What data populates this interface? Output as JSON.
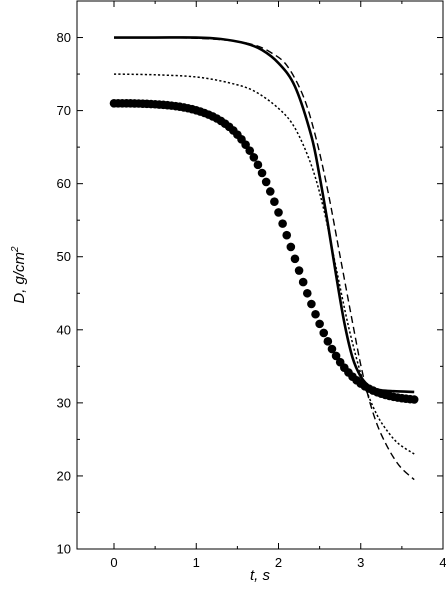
{
  "chart_data": {
    "type": "line",
    "xlabel": "t, s",
    "ylabel_main": "D, g/cm",
    "ylabel_sup": "2",
    "xlim": [
      -0.45,
      4.0
    ],
    "ylim": [
      10,
      85
    ],
    "xticks": [
      0,
      1,
      2,
      3,
      4
    ],
    "yticks": [
      10,
      20,
      30,
      40,
      50,
      60,
      70,
      80
    ],
    "xtick_labels": [
      "0",
      "1",
      "2",
      "3",
      "4"
    ],
    "ytick_labels": [
      "10",
      "20",
      "30",
      "40",
      "50",
      "60",
      "70",
      "80"
    ],
    "grid": false,
    "legend": "none",
    "series": [
      {
        "style": "solid",
        "color": "#000000",
        "x": [
          0,
          0.5,
          1.0,
          1.3,
          1.6,
          1.8,
          2.0,
          2.2,
          2.4,
          2.5,
          2.6,
          2.7,
          2.8,
          2.9,
          3.0,
          3.1,
          3.2,
          3.4,
          3.65
        ],
        "y": [
          80,
          80,
          80,
          79.8,
          79.2,
          78.3,
          76.5,
          73.3,
          66.5,
          61.0,
          54.5,
          47.5,
          41.0,
          36.2,
          33.6,
          32.3,
          31.8,
          31.6,
          31.5
        ]
      },
      {
        "style": "dashed",
        "color": "#000000",
        "x": [
          0,
          0.5,
          1.0,
          1.4,
          1.7,
          1.9,
          2.1,
          2.3,
          2.45,
          2.6,
          2.75,
          2.9,
          3.0,
          3.1,
          3.2,
          3.3,
          3.4,
          3.5,
          3.65
        ],
        "y": [
          80,
          80,
          79.9,
          79.6,
          79.0,
          78.0,
          76.2,
          72.0,
          66.5,
          59.0,
          50.0,
          41.0,
          35.2,
          30.5,
          27.0,
          24.5,
          22.5,
          21.0,
          19.5
        ]
      },
      {
        "style": "dotted",
        "color": "#000000",
        "x": [
          0,
          0.5,
          1.0,
          1.4,
          1.7,
          2.0,
          2.2,
          2.4,
          2.55,
          2.7,
          2.85,
          3.0,
          3.1,
          3.2,
          3.3,
          3.45,
          3.65
        ],
        "y": [
          75,
          74.9,
          74.6,
          73.8,
          72.7,
          70.3,
          67.6,
          62.5,
          56.5,
          48.5,
          40.5,
          34.0,
          30.8,
          28.3,
          26.5,
          24.5,
          23.0
        ]
      },
      {
        "style": "markers",
        "marker": "filled-circle",
        "color": "#000000",
        "x": [
          0.0,
          0.05,
          0.1,
          0.15,
          0.2,
          0.25,
          0.3,
          0.35,
          0.4,
          0.45,
          0.5,
          0.55,
          0.6,
          0.65,
          0.7,
          0.75,
          0.8,
          0.85,
          0.9,
          0.95,
          1.0,
          1.05,
          1.1,
          1.15,
          1.2,
          1.25,
          1.3,
          1.35,
          1.4,
          1.45,
          1.5,
          1.55,
          1.6,
          1.65,
          1.7,
          1.75,
          1.8,
          1.85,
          1.9,
          1.95,
          2.0,
          2.05,
          2.1,
          2.15,
          2.2,
          2.25,
          2.3,
          2.35,
          2.4,
          2.45,
          2.5,
          2.55,
          2.6,
          2.65,
          2.7,
          2.75,
          2.8,
          2.85,
          2.9,
          2.95,
          3.0,
          3.05,
          3.1,
          3.15,
          3.2,
          3.25,
          3.3,
          3.35,
          3.4,
          3.45,
          3.5,
          3.55,
          3.6,
          3.65
        ],
        "y": [
          71.0,
          71.0,
          71.0,
          71.0,
          71.0,
          70.98,
          70.97,
          70.95,
          70.93,
          70.9,
          70.87,
          70.83,
          70.79,
          70.74,
          70.68,
          70.61,
          70.53,
          70.43,
          70.32,
          70.19,
          70.04,
          69.87,
          69.67,
          69.45,
          69.2,
          68.92,
          68.59,
          68.21,
          67.78,
          67.28,
          66.71,
          66.07,
          65.34,
          64.52,
          63.6,
          62.58,
          61.46,
          60.24,
          58.93,
          57.53,
          56.06,
          54.53,
          52.95,
          51.34,
          49.72,
          48.11,
          46.53,
          45.0,
          43.53,
          42.13,
          40.81,
          39.57,
          38.42,
          37.37,
          36.42,
          35.57,
          34.82,
          34.16,
          33.58,
          33.08,
          32.64,
          32.27,
          31.95,
          31.68,
          31.45,
          31.25,
          31.08,
          30.94,
          30.82,
          30.72,
          30.64,
          30.57,
          30.51,
          30.46
        ]
      }
    ]
  }
}
